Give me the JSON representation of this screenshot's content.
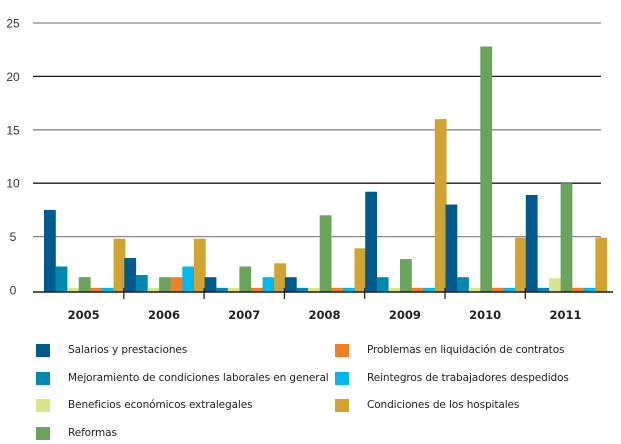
{
  "chart_data": {
    "type": "bar",
    "title": "",
    "xlabel": "",
    "ylabel": "",
    "ylim": [
      0,
      25
    ],
    "yticks": [
      0,
      5,
      10,
      15,
      20,
      25
    ],
    "grid": true,
    "legend_position": "bottom",
    "categories": [
      "2005",
      "2006",
      "2007",
      "2008",
      "2009",
      "2010",
      "2011"
    ],
    "series": [
      {
        "name": "Salarios y prestaciones",
        "color": "#005a8c",
        "values": [
          7.5,
          3.0,
          1.2,
          1.2,
          9.2,
          8.0,
          8.9
        ]
      },
      {
        "name": "Mejoramiento de condiciones laborales en general",
        "color": "#0088b0",
        "values": [
          2.2,
          1.4,
          0.2,
          0.2,
          1.2,
          1.2,
          0.2
        ]
      },
      {
        "name": "Beneficios económicos extralegales",
        "color": "#d8e48a",
        "values": [
          0.2,
          0.2,
          0.2,
          0.2,
          0.2,
          0.2,
          1.1
        ]
      },
      {
        "name": "Reformas",
        "color": "#6aa35a",
        "values": [
          1.2,
          1.2,
          2.2,
          7.0,
          2.9,
          22.8,
          10.0
        ]
      },
      {
        "name": "Problemas en liquidación de contratos",
        "color": "#f37f22",
        "values": [
          0.2,
          1.2,
          0.2,
          0.2,
          0.2,
          0.2,
          0.2
        ]
      },
      {
        "name": "Reintegros de trabajadores despedidos",
        "color": "#00b9ee",
        "values": [
          0.2,
          2.2,
          1.2,
          0.2,
          0.2,
          0.2,
          0.2
        ]
      },
      {
        "name": "Condiciones de los hospitales",
        "color": "#d4a22e",
        "values": [
          4.8,
          4.8,
          2.5,
          3.9,
          16.0,
          4.9,
          4.9
        ]
      }
    ]
  },
  "legend": {
    "left_column": [
      0,
      1,
      2,
      3
    ],
    "right_column": [
      4,
      5,
      6
    ]
  }
}
